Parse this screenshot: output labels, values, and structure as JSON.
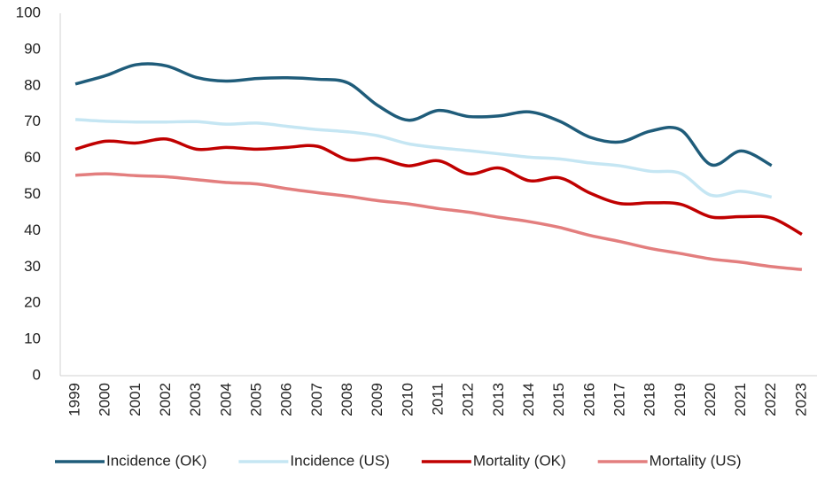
{
  "chart_data": {
    "type": "line",
    "categories": [
      "1999",
      "2000",
      "2001",
      "2002",
      "2003",
      "2004",
      "2005",
      "2006",
      "2007",
      "2008",
      "2009",
      "2010",
      "2011",
      "2012",
      "2013",
      "2014",
      "2015",
      "2016",
      "2017",
      "2018",
      "2019",
      "2020",
      "2021",
      "2022",
      "2023"
    ],
    "series": [
      {
        "name": "Incidence (OK)",
        "color": "#1f5c7a",
        "values": [
          80.5,
          82.8,
          85.8,
          85.5,
          82.3,
          81.3,
          82.0,
          82.2,
          81.8,
          80.8,
          74.5,
          70.5,
          73.2,
          71.5,
          71.7,
          72.8,
          70.2,
          65.8,
          64.5,
          67.5,
          67.8,
          58.2,
          62.0,
          58.0,
          null
        ]
      },
      {
        "name": "Incidence (US)",
        "color": "#c5e6f3",
        "values": [
          70.7,
          70.2,
          70.0,
          70.0,
          70.1,
          69.4,
          69.7,
          68.8,
          67.9,
          67.3,
          66.2,
          64.0,
          62.9,
          62.1,
          61.2,
          60.3,
          59.8,
          58.7,
          57.9,
          56.4,
          55.8,
          49.8,
          50.9,
          49.3,
          null
        ]
      },
      {
        "name": "Mortality (OK)",
        "color": "#c00000",
        "values": [
          62.5,
          64.7,
          64.2,
          65.3,
          62.5,
          63.0,
          62.5,
          63.0,
          63.3,
          59.6,
          60.0,
          57.9,
          59.3,
          55.7,
          57.3,
          53.8,
          54.6,
          50.4,
          47.5,
          47.7,
          47.3,
          43.8,
          43.9,
          43.5,
          39.0
        ]
      },
      {
        "name": "Mortality (US)",
        "color": "#e37e7e",
        "values": [
          55.3,
          55.7,
          55.2,
          54.9,
          54.1,
          53.3,
          52.9,
          51.6,
          50.5,
          49.5,
          48.3,
          47.4,
          46.1,
          45.1,
          43.7,
          42.5,
          40.9,
          38.7,
          37.0,
          35.1,
          33.7,
          32.2,
          31.3,
          30.1,
          29.3
        ]
      }
    ],
    "ylim": [
      0,
      100
    ],
    "yticks": [
      0,
      10,
      20,
      30,
      40,
      50,
      60,
      70,
      80,
      90,
      100
    ],
    "grid": false,
    "legend": "bottom"
  }
}
